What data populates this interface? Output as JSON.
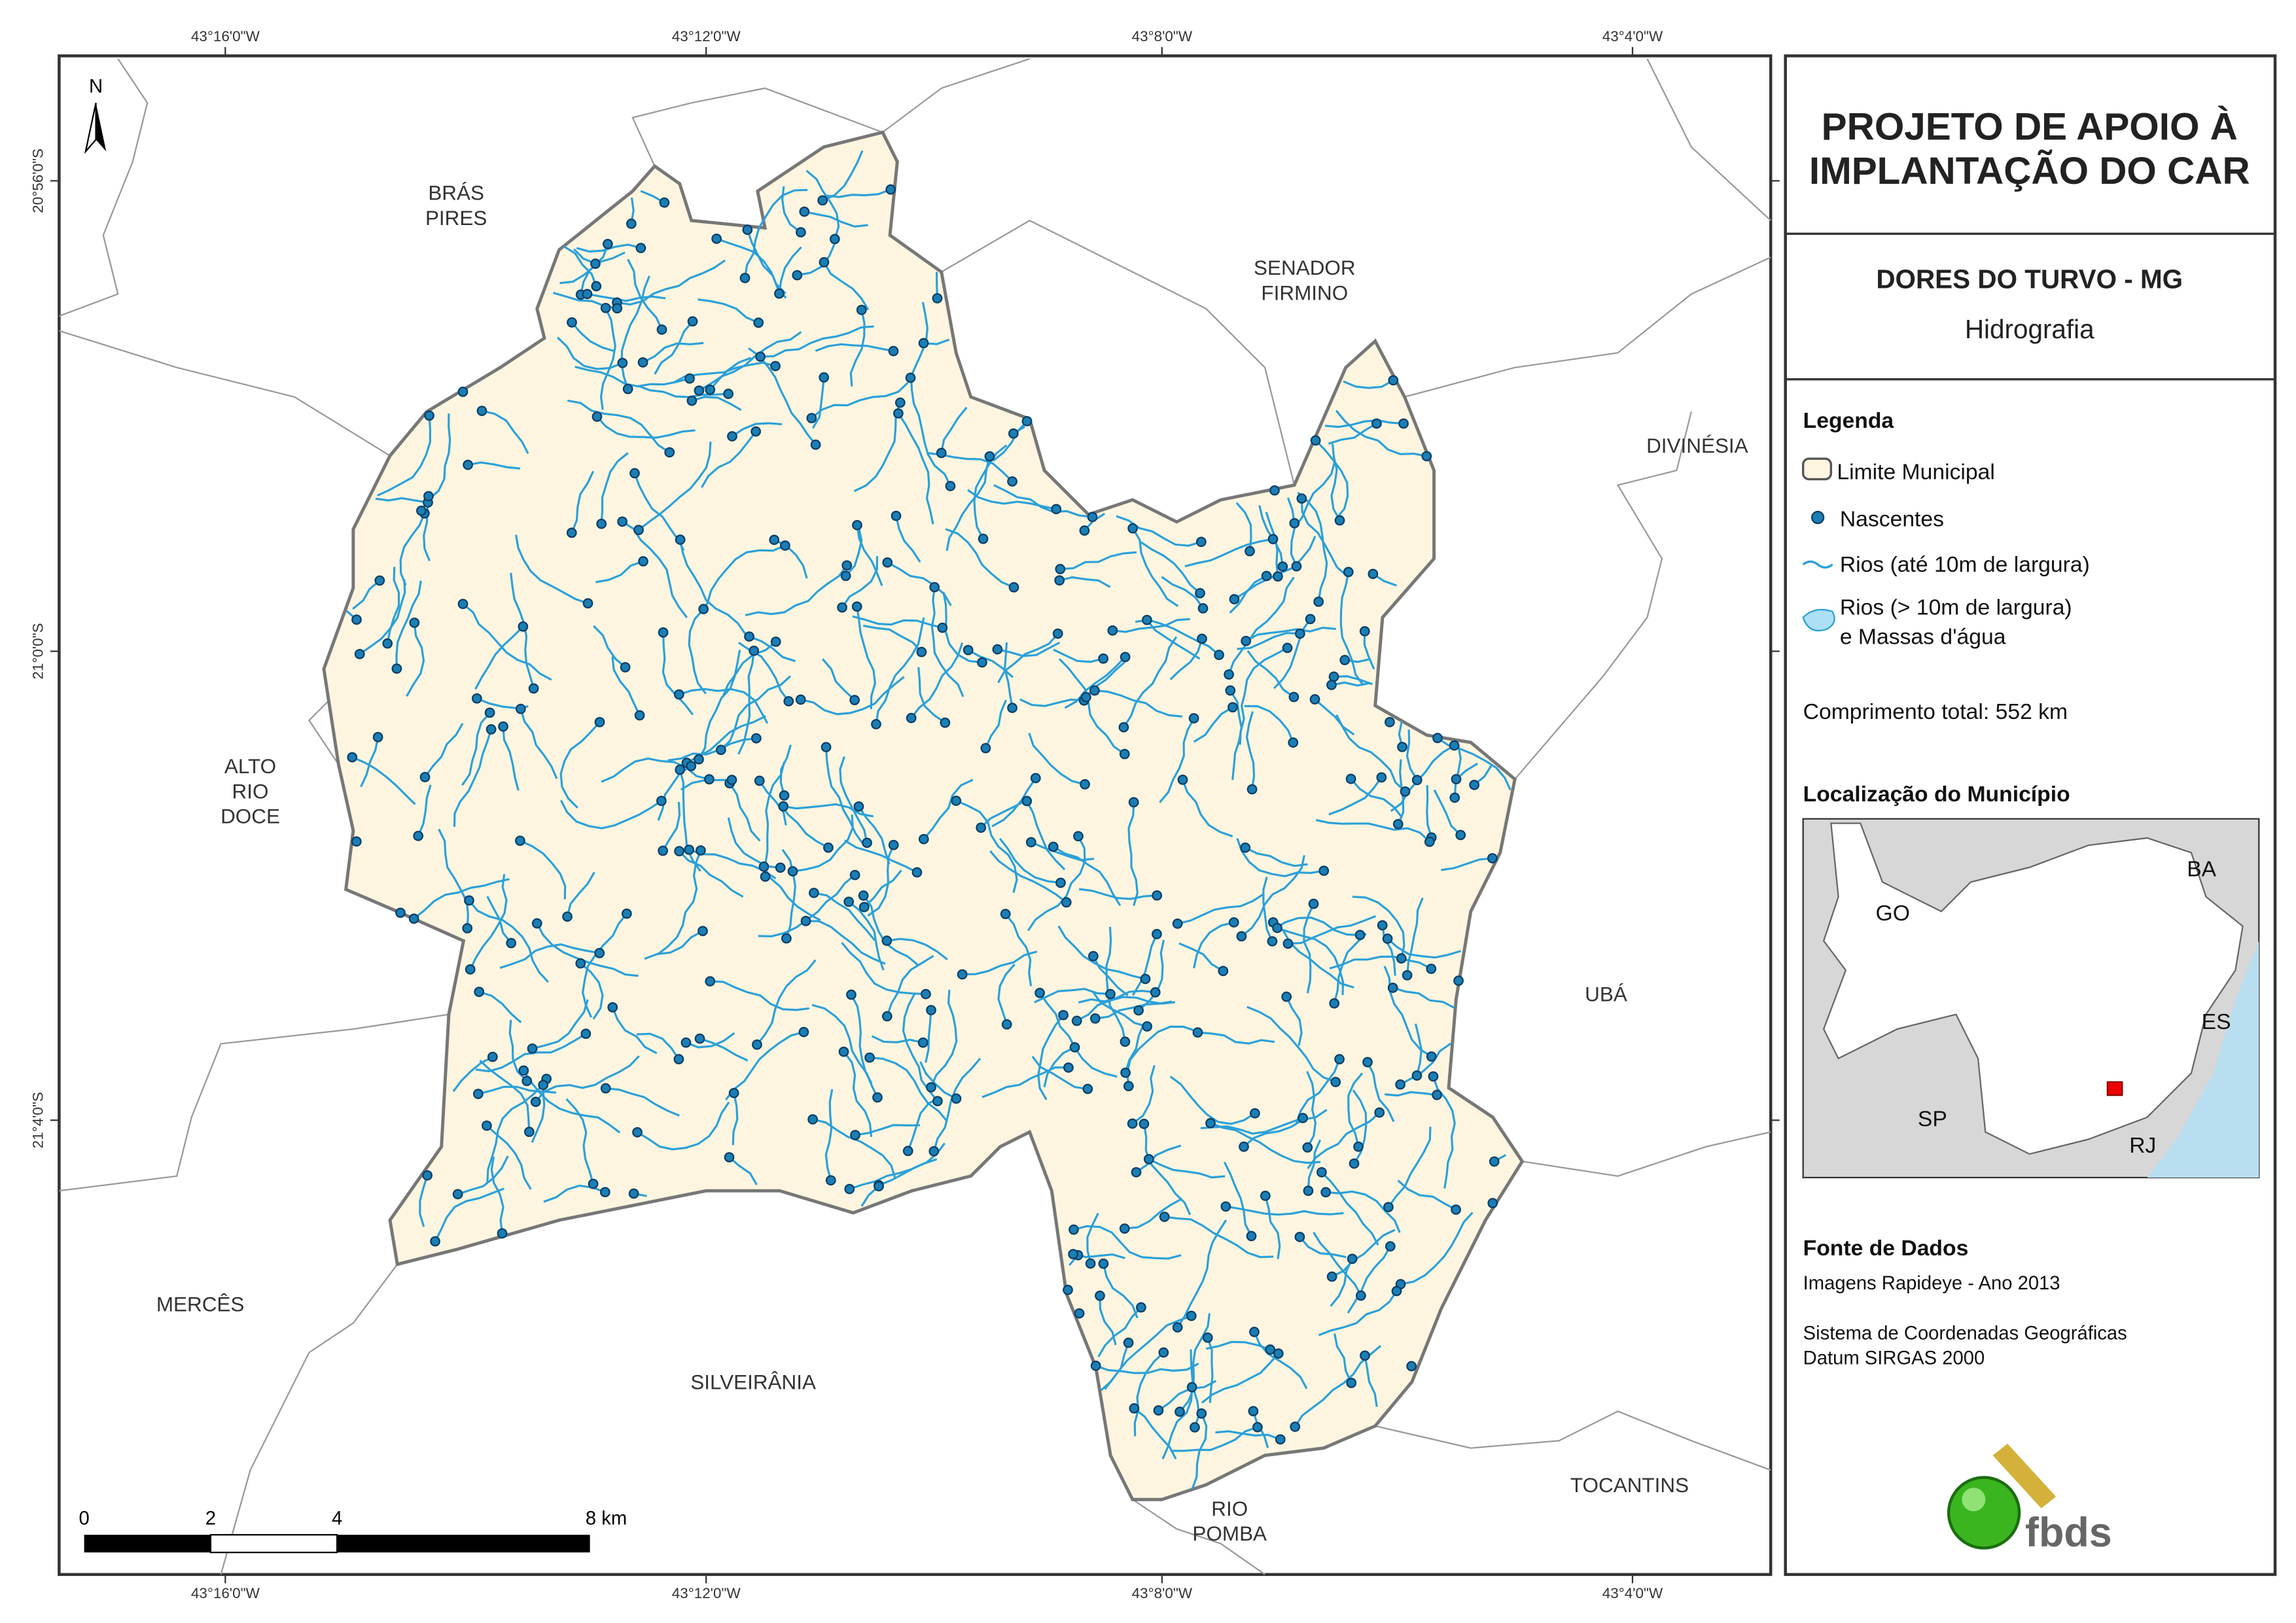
{
  "map": {
    "coordinates": {
      "longitudes_top": [
        "43°16'0\"W",
        "43°12'0\"W",
        "43°8'0\"W",
        "43°4'0\"W"
      ],
      "longitudes_bottom": [
        "43°16'0\"W",
        "43°12'0\"W",
        "43°8'0\"W",
        "43°4'0\"W"
      ],
      "latitudes": [
        "20°56'0\"S",
        "21°0'0\"S",
        "21°4'0\"S"
      ]
    },
    "north": "N",
    "places": [
      {
        "lines": [
          "BRÁS",
          "PIRES"
        ]
      },
      {
        "lines": [
          "SENADOR",
          "FIRMINO"
        ]
      },
      {
        "lines": [
          "DIVINÉSIA"
        ]
      },
      {
        "lines": [
          "ALTO",
          "RIO",
          "DOCE"
        ]
      },
      {
        "lines": [
          "UBÁ"
        ]
      },
      {
        "lines": [
          "MERCÊS"
        ]
      },
      {
        "lines": [
          "SILVEIRÂNIA"
        ]
      },
      {
        "lines": [
          "TOCANTINS"
        ]
      },
      {
        "lines": [
          "RIO",
          "POMBA"
        ]
      }
    ],
    "scale": {
      "labels": [
        "0",
        "2",
        "4",
        "8 km"
      ]
    }
  },
  "panel": {
    "title": [
      "PROJETO DE APOIO À",
      "IMPLANTAÇÃO DO CAR"
    ],
    "municipality": "DORES DO TURVO - MG",
    "theme": "Hidrografia",
    "legend": {
      "title": "Legenda",
      "items": [
        "Limite Municipal",
        "Nascentes",
        "Rios (até 10m de largura)",
        [
          "Rios (> 10m de largura)",
          "e Massas d'água"
        ]
      ]
    },
    "total_length": "Comprimento total:  552 km",
    "location": {
      "title": "Localização do Município",
      "labels": [
        "GO",
        "BA",
        "ES",
        "SP",
        "RJ"
      ]
    },
    "sources": {
      "title": "Fonte de Dados",
      "lines": [
        "Imagens Rapideye - Ano 2013",
        "Sistema de Coordenadas Geográficas",
        "Datum SIRGAS 2000"
      ]
    },
    "logo": "fbds"
  }
}
